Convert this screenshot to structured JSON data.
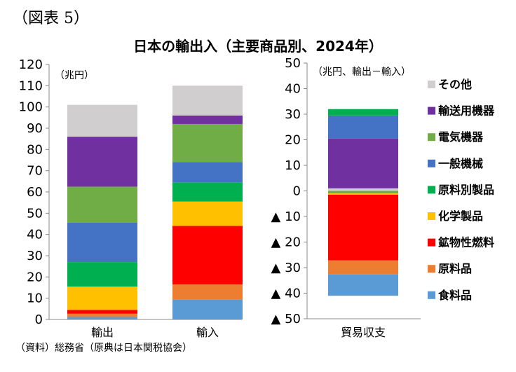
{
  "figure_label": "（図表 5）",
  "title": "日本の輸出入（主要商品別、2024年）",
  "source_note": "（資料）総務省（原典は日本関税協会）",
  "chart_data": [
    {
      "type": "bar",
      "stacked": true,
      "unit_label": "（兆円）",
      "categories": [
        "輸出",
        "輸入"
      ],
      "ylim": [
        0,
        120
      ],
      "yticks": [
        "0",
        "10",
        "20",
        "30",
        "40",
        "50",
        "60",
        "70",
        "80",
        "90",
        "100",
        "110",
        "120"
      ],
      "grid": false,
      "series": [
        {
          "name": "食料品",
          "color": "#5b9bd5",
          "values": [
            1.2,
            9.5
          ]
        },
        {
          "name": "原料品",
          "color": "#ed7d31",
          "values": [
            1.5,
            7.0
          ]
        },
        {
          "name": "鉱物性燃料",
          "color": "#ff0000",
          "values": [
            1.8,
            27.5
          ]
        },
        {
          "name": "化学製品",
          "color": "#ffc000",
          "values": [
            11.0,
            11.5
          ]
        },
        {
          "name": "原料別製品",
          "color": "#00b050",
          "values": [
            11.5,
            9.0
          ]
        },
        {
          "name": "一般機械",
          "color": "#4472c4",
          "values": [
            18.5,
            9.5
          ]
        },
        {
          "name": "電気機器",
          "color": "#70ad47",
          "values": [
            17.0,
            18.0
          ]
        },
        {
          "name": "輸送用機器",
          "color": "#7030a0",
          "values": [
            23.5,
            4.0
          ]
        },
        {
          "name": "その他",
          "color": "#d0cece",
          "values": [
            15.0,
            14.0
          ]
        }
      ]
    },
    {
      "type": "bar",
      "stacked": true,
      "unit_label": "（兆円、輸出－輸入）",
      "categories": [
        "貿易収支"
      ],
      "ylim": [
        -50,
        50
      ],
      "yticks": [
        "50",
        "40",
        "30",
        "20",
        "10",
        "0",
        "▲ 10",
        "▲ 20",
        "▲ 30",
        "▲ 40",
        "▲ 50"
      ],
      "grid": false,
      "legend_position": "right",
      "series": [
        {
          "name": "その他",
          "color": "#d0cece",
          "values": [
            1.0
          ]
        },
        {
          "name": "輸送用機器",
          "color": "#7030a0",
          "values": [
            19.5
          ]
        },
        {
          "name": "電気機器",
          "color": "#70ad47",
          "values": [
            -1.0
          ]
        },
        {
          "name": "一般機械",
          "color": "#4472c4",
          "values": [
            9.0
          ]
        },
        {
          "name": "原料別製品",
          "color": "#00b050",
          "values": [
            2.5
          ]
        },
        {
          "name": "化学製品",
          "color": "#ffc000",
          "values": [
            -0.5
          ]
        },
        {
          "name": "鉱物性燃料",
          "color": "#ff0000",
          "values": [
            -25.7
          ]
        },
        {
          "name": "原料品",
          "color": "#ed7d31",
          "values": [
            -5.5
          ]
        },
        {
          "name": "食料品",
          "color": "#5b9bd5",
          "values": [
            -8.3
          ]
        }
      ]
    }
  ]
}
